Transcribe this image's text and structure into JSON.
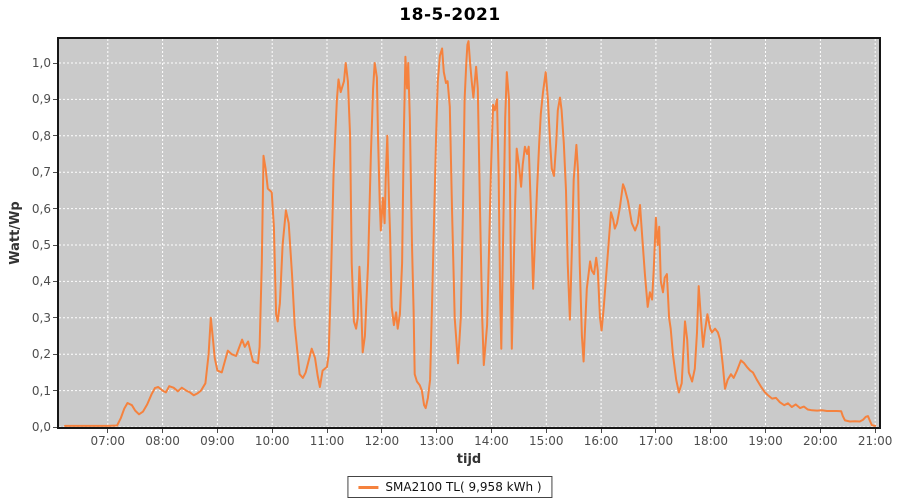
{
  "title": "18-5-2021",
  "colors": {
    "series": "#f5823e",
    "plot_background": "#cacaca",
    "gridline": "#ffffff",
    "plot_border": "#161616",
    "tick_text": "#4d4d4d",
    "axis_label_text": "#333333"
  },
  "legend": {
    "label": "SMA2100 TL( 9,958 kWh )"
  },
  "chart_data": {
    "type": "line",
    "title": "18-5-2021",
    "xlabel": "tijd",
    "ylabel": "Watt/Wp",
    "grid": true,
    "legend_position": "bottom",
    "xlim": [
      6.11,
      21.07
    ],
    "ylim": [
      0,
      1.066
    ],
    "x_ticks": [
      "07:00",
      "08:00",
      "09:00",
      "10:00",
      "11:00",
      "12:00",
      "13:00",
      "14:00",
      "15:00",
      "16:00",
      "17:00",
      "18:00",
      "19:00",
      "20:00",
      "21:00"
    ],
    "x_tick_hours": [
      7,
      8,
      9,
      10,
      11,
      12,
      13,
      14,
      15,
      16,
      17,
      18,
      19,
      20,
      21
    ],
    "y_ticks": [
      "0,0",
      "0,1",
      "0,2",
      "0,3",
      "0,4",
      "0,5",
      "0,6",
      "0,7",
      "0,8",
      "0,9",
      "1,0"
    ],
    "y_tick_values": [
      0,
      0.1,
      0.2,
      0.3,
      0.4,
      0.5,
      0.6,
      0.7,
      0.8,
      0.9,
      1.0
    ],
    "series": [
      {
        "name": "SMA2100 TL( 9,958 kWh )",
        "color": "#f5823e",
        "points": [
          [
            6.22,
            0.003
          ],
          [
            6.5,
            0.003
          ],
          [
            6.8,
            0.003
          ],
          [
            7.0,
            0.003
          ],
          [
            7.17,
            0.004
          ],
          [
            7.24,
            0.025
          ],
          [
            7.3,
            0.05
          ],
          [
            7.36,
            0.066
          ],
          [
            7.44,
            0.06
          ],
          [
            7.5,
            0.045
          ],
          [
            7.57,
            0.035
          ],
          [
            7.64,
            0.042
          ],
          [
            7.72,
            0.062
          ],
          [
            7.8,
            0.09
          ],
          [
            7.86,
            0.107
          ],
          [
            7.92,
            0.11
          ],
          [
            8.0,
            0.1
          ],
          [
            8.06,
            0.095
          ],
          [
            8.12,
            0.112
          ],
          [
            8.2,
            0.108
          ],
          [
            8.28,
            0.098
          ],
          [
            8.35,
            0.108
          ],
          [
            8.43,
            0.1
          ],
          [
            8.5,
            0.095
          ],
          [
            8.57,
            0.087
          ],
          [
            8.64,
            0.093
          ],
          [
            8.7,
            0.1
          ],
          [
            8.78,
            0.12
          ],
          [
            8.84,
            0.2
          ],
          [
            8.88,
            0.3
          ],
          [
            8.92,
            0.24
          ],
          [
            8.95,
            0.19
          ],
          [
            9.0,
            0.155
          ],
          [
            9.08,
            0.15
          ],
          [
            9.19,
            0.21
          ],
          [
            9.26,
            0.2
          ],
          [
            9.34,
            0.195
          ],
          [
            9.45,
            0.24
          ],
          [
            9.5,
            0.22
          ],
          [
            9.56,
            0.235
          ],
          [
            9.65,
            0.18
          ],
          [
            9.74,
            0.175
          ],
          [
            9.77,
            0.22
          ],
          [
            9.81,
            0.45
          ],
          [
            9.84,
            0.745
          ],
          [
            9.88,
            0.71
          ],
          [
            9.92,
            0.655
          ],
          [
            9.99,
            0.645
          ],
          [
            10.03,
            0.55
          ],
          [
            10.07,
            0.31
          ],
          [
            10.1,
            0.29
          ],
          [
            10.14,
            0.34
          ],
          [
            10.19,
            0.5
          ],
          [
            10.25,
            0.595
          ],
          [
            10.3,
            0.56
          ],
          [
            10.36,
            0.42
          ],
          [
            10.41,
            0.28
          ],
          [
            10.47,
            0.19
          ],
          [
            10.5,
            0.145
          ],
          [
            10.56,
            0.135
          ],
          [
            10.61,
            0.15
          ],
          [
            10.67,
            0.185
          ],
          [
            10.72,
            0.215
          ],
          [
            10.78,
            0.19
          ],
          [
            10.83,
            0.14
          ],
          [
            10.87,
            0.11
          ],
          [
            10.92,
            0.155
          ],
          [
            11.0,
            0.165
          ],
          [
            11.03,
            0.2
          ],
          [
            11.07,
            0.4
          ],
          [
            11.12,
            0.7
          ],
          [
            11.18,
            0.9
          ],
          [
            11.21,
            0.955
          ],
          [
            11.25,
            0.92
          ],
          [
            11.31,
            0.95
          ],
          [
            11.34,
            1.0
          ],
          [
            11.38,
            0.95
          ],
          [
            11.42,
            0.8
          ],
          [
            11.45,
            0.45
          ],
          [
            11.49,
            0.29
          ],
          [
            11.53,
            0.27
          ],
          [
            11.56,
            0.3
          ],
          [
            11.59,
            0.44
          ],
          [
            11.62,
            0.35
          ],
          [
            11.65,
            0.205
          ],
          [
            11.69,
            0.25
          ],
          [
            11.75,
            0.45
          ],
          [
            11.8,
            0.75
          ],
          [
            11.84,
            0.93
          ],
          [
            11.87,
            1.0
          ],
          [
            11.91,
            0.96
          ],
          [
            11.93,
            0.8
          ],
          [
            11.96,
            0.62
          ],
          [
            11.98,
            0.54
          ],
          [
            12.02,
            0.63
          ],
          [
            12.05,
            0.56
          ],
          [
            12.07,
            0.68
          ],
          [
            12.1,
            0.8
          ],
          [
            12.13,
            0.62
          ],
          [
            12.15,
            0.53
          ],
          [
            12.18,
            0.33
          ],
          [
            12.22,
            0.28
          ],
          [
            12.26,
            0.315
          ],
          [
            12.29,
            0.27
          ],
          [
            12.33,
            0.31
          ],
          [
            12.37,
            0.45
          ],
          [
            12.4,
            0.8
          ],
          [
            12.43,
            1.017
          ],
          [
            12.46,
            0.93
          ],
          [
            12.48,
            1.0
          ],
          [
            12.51,
            0.85
          ],
          [
            12.55,
            0.5
          ],
          [
            12.58,
            0.32
          ],
          [
            12.6,
            0.145
          ],
          [
            12.64,
            0.125
          ],
          [
            12.69,
            0.115
          ],
          [
            12.73,
            0.1
          ],
          [
            12.77,
            0.06
          ],
          [
            12.8,
            0.052
          ],
          [
            12.84,
            0.08
          ],
          [
            12.88,
            0.13
          ],
          [
            12.91,
            0.3
          ],
          [
            12.95,
            0.55
          ],
          [
            12.99,
            0.8
          ],
          [
            13.02,
            0.95
          ],
          [
            13.06,
            1.02
          ],
          [
            13.1,
            1.04
          ],
          [
            13.13,
            0.975
          ],
          [
            13.17,
            0.945
          ],
          [
            13.2,
            0.95
          ],
          [
            13.24,
            0.88
          ],
          [
            13.28,
            0.6
          ],
          [
            13.33,
            0.3
          ],
          [
            13.39,
            0.175
          ],
          [
            13.44,
            0.3
          ],
          [
            13.48,
            0.6
          ],
          [
            13.51,
            0.9
          ],
          [
            13.54,
            1.0
          ],
          [
            13.56,
            1.05
          ],
          [
            13.58,
            1.06
          ],
          [
            13.61,
            1.0
          ],
          [
            13.64,
            0.95
          ],
          [
            13.67,
            0.905
          ],
          [
            13.72,
            0.99
          ],
          [
            13.75,
            0.93
          ],
          [
            13.79,
            0.6
          ],
          [
            13.83,
            0.3
          ],
          [
            13.86,
            0.17
          ],
          [
            13.92,
            0.28
          ],
          [
            13.95,
            0.45
          ],
          [
            13.99,
            0.7
          ],
          [
            14.03,
            0.885
          ],
          [
            14.06,
            0.87
          ],
          [
            14.1,
            0.9
          ],
          [
            14.13,
            0.7
          ],
          [
            14.16,
            0.35
          ],
          [
            14.18,
            0.215
          ],
          [
            14.21,
            0.5
          ],
          [
            14.25,
            0.85
          ],
          [
            14.28,
            0.975
          ],
          [
            14.32,
            0.9
          ],
          [
            14.35,
            0.5
          ],
          [
            14.37,
            0.215
          ],
          [
            14.4,
            0.4
          ],
          [
            14.43,
            0.6
          ],
          [
            14.46,
            0.765
          ],
          [
            14.5,
            0.72
          ],
          [
            14.54,
            0.66
          ],
          [
            14.57,
            0.72
          ],
          [
            14.61,
            0.77
          ],
          [
            14.65,
            0.75
          ],
          [
            14.68,
            0.77
          ],
          [
            14.72,
            0.6
          ],
          [
            14.76,
            0.38
          ],
          [
            14.79,
            0.5
          ],
          [
            14.83,
            0.65
          ],
          [
            14.87,
            0.78
          ],
          [
            14.9,
            0.86
          ],
          [
            14.94,
            0.92
          ],
          [
            14.99,
            0.975
          ],
          [
            15.03,
            0.9
          ],
          [
            15.07,
            0.78
          ],
          [
            15.1,
            0.71
          ],
          [
            15.14,
            0.69
          ],
          [
            15.18,
            0.78
          ],
          [
            15.21,
            0.87
          ],
          [
            15.25,
            0.905
          ],
          [
            15.28,
            0.87
          ],
          [
            15.32,
            0.78
          ],
          [
            15.36,
            0.65
          ],
          [
            15.39,
            0.45
          ],
          [
            15.43,
            0.295
          ],
          [
            15.47,
            0.5
          ],
          [
            15.5,
            0.68
          ],
          [
            15.55,
            0.775
          ],
          [
            15.58,
            0.7
          ],
          [
            15.61,
            0.45
          ],
          [
            15.65,
            0.25
          ],
          [
            15.68,
            0.18
          ],
          [
            15.7,
            0.25
          ],
          [
            15.74,
            0.38
          ],
          [
            15.8,
            0.455
          ],
          [
            15.83,
            0.43
          ],
          [
            15.87,
            0.42
          ],
          [
            15.91,
            0.465
          ],
          [
            15.94,
            0.43
          ],
          [
            15.98,
            0.3
          ],
          [
            16.01,
            0.265
          ],
          [
            16.05,
            0.33
          ],
          [
            16.11,
            0.45
          ],
          [
            16.18,
            0.59
          ],
          [
            16.22,
            0.57
          ],
          [
            16.25,
            0.545
          ],
          [
            16.29,
            0.56
          ],
          [
            16.34,
            0.6
          ],
          [
            16.4,
            0.667
          ],
          [
            16.43,
            0.655
          ],
          [
            16.49,
            0.62
          ],
          [
            16.56,
            0.56
          ],
          [
            16.62,
            0.54
          ],
          [
            16.67,
            0.56
          ],
          [
            16.71,
            0.61
          ],
          [
            16.76,
            0.5
          ],
          [
            16.8,
            0.42
          ],
          [
            16.85,
            0.33
          ],
          [
            16.89,
            0.37
          ],
          [
            16.93,
            0.35
          ],
          [
            16.96,
            0.43
          ],
          [
            17.0,
            0.575
          ],
          [
            17.03,
            0.5
          ],
          [
            17.06,
            0.55
          ],
          [
            17.09,
            0.4
          ],
          [
            17.13,
            0.37
          ],
          [
            17.16,
            0.41
          ],
          [
            17.2,
            0.42
          ],
          [
            17.24,
            0.3
          ],
          [
            17.27,
            0.27
          ],
          [
            17.31,
            0.2
          ],
          [
            17.37,
            0.13
          ],
          [
            17.42,
            0.095
          ],
          [
            17.47,
            0.12
          ],
          [
            17.53,
            0.29
          ],
          [
            17.57,
            0.24
          ],
          [
            17.6,
            0.15
          ],
          [
            17.66,
            0.125
          ],
          [
            17.71,
            0.16
          ],
          [
            17.75,
            0.26
          ],
          [
            17.78,
            0.387
          ],
          [
            17.82,
            0.3
          ],
          [
            17.86,
            0.22
          ],
          [
            17.89,
            0.26
          ],
          [
            17.94,
            0.31
          ],
          [
            17.99,
            0.27
          ],
          [
            18.02,
            0.26
          ],
          [
            18.08,
            0.27
          ],
          [
            18.13,
            0.26
          ],
          [
            18.17,
            0.24
          ],
          [
            18.22,
            0.17
          ],
          [
            18.26,
            0.105
          ],
          [
            18.31,
            0.13
          ],
          [
            18.37,
            0.145
          ],
          [
            18.42,
            0.135
          ],
          [
            18.48,
            0.155
          ],
          [
            18.55,
            0.183
          ],
          [
            18.61,
            0.175
          ],
          [
            18.66,
            0.165
          ],
          [
            18.72,
            0.155
          ],
          [
            18.77,
            0.15
          ],
          [
            18.84,
            0.13
          ],
          [
            18.92,
            0.11
          ],
          [
            18.99,
            0.095
          ],
          [
            19.04,
            0.088
          ],
          [
            19.12,
            0.078
          ],
          [
            19.19,
            0.08
          ],
          [
            19.26,
            0.068
          ],
          [
            19.34,
            0.06
          ],
          [
            19.41,
            0.065
          ],
          [
            19.48,
            0.055
          ],
          [
            19.55,
            0.062
          ],
          [
            19.63,
            0.052
          ],
          [
            19.7,
            0.056
          ],
          [
            19.77,
            0.048
          ],
          [
            19.85,
            0.046
          ],
          [
            19.94,
            0.045
          ],
          [
            20.03,
            0.046
          ],
          [
            20.12,
            0.044
          ],
          [
            20.21,
            0.044
          ],
          [
            20.3,
            0.044
          ],
          [
            20.38,
            0.043
          ],
          [
            20.41,
            0.03
          ],
          [
            20.45,
            0.018
          ],
          [
            20.54,
            0.015
          ],
          [
            20.63,
            0.016
          ],
          [
            20.72,
            0.015
          ],
          [
            20.78,
            0.02
          ],
          [
            20.83,
            0.028
          ],
          [
            20.87,
            0.03
          ],
          [
            20.91,
            0.015
          ],
          [
            20.94,
            0.005
          ],
          [
            21.0,
            0.003
          ]
        ]
      }
    ]
  }
}
